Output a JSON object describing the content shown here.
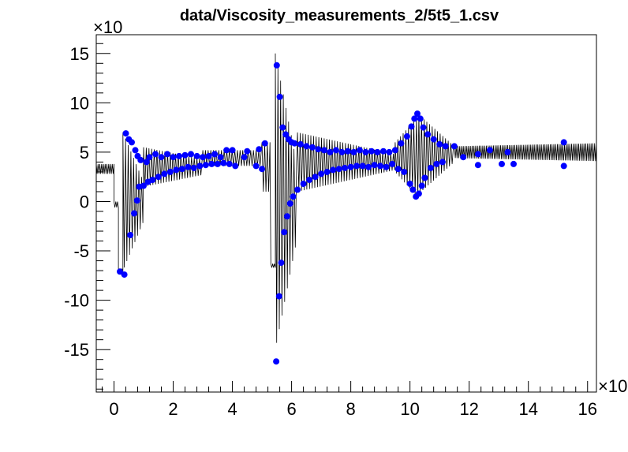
{
  "chart_data": {
    "type": "scatter",
    "title": "data/Viscosity_measurements_2/5t5_1.csv",
    "x_exponent_label": "×10",
    "y_exponent_label": "×10",
    "xlim": [
      -0.6,
      16.3
    ],
    "ylim": [
      -19.3,
      16.9
    ],
    "x_ticks": [
      0,
      2,
      4,
      6,
      8,
      10,
      12,
      14,
      16
    ],
    "x_tick_labels": [
      "0",
      "2",
      "4",
      "6",
      "8",
      "10",
      "12",
      "14",
      "16"
    ],
    "y_ticks": [
      15,
      10,
      5,
      0,
      -5,
      -10,
      -15
    ],
    "y_tick_labels": [
      "15",
      "10",
      "5",
      "0",
      "-5",
      "-10",
      "-15"
    ],
    "grid": false,
    "series": [
      {
        "kind": "signal",
        "color": "#000000",
        "segments": [
          {
            "x_start": -0.6,
            "x_end": 0.0,
            "center": 3.3,
            "amp_start": 0.5,
            "amp_end": 0.5,
            "period": 0.06
          },
          {
            "x_start": 0.0,
            "x_end": 0.15,
            "center": -0.3,
            "amp_start": 0.3,
            "amp_end": 0.3,
            "period": 0.06
          },
          {
            "x_start": 0.15,
            "x_end": 0.3,
            "center": -7.0,
            "amp_start": 0.2,
            "amp_end": 0.2,
            "period": 0.06
          },
          {
            "x_start": 0.3,
            "x_end": 1.0,
            "center": 0.0,
            "amp_start": 7.0,
            "amp_end": 2.0,
            "period": 0.09
          },
          {
            "x_start": 1.0,
            "x_end": 3.0,
            "center": 3.5,
            "amp_start": 2.0,
            "amp_end": 0.8,
            "period": 0.09
          },
          {
            "x_start": 3.0,
            "x_end": 5.0,
            "center": 4.4,
            "amp_start": 0.8,
            "amp_end": 0.8,
            "period": 0.09
          },
          {
            "x_start": 5.0,
            "x_end": 5.3,
            "center": 3.5,
            "amp_start": 2.5,
            "amp_end": 2.5,
            "period": 0.09
          },
          {
            "x_start": 5.3,
            "x_end": 5.45,
            "center": -6.5,
            "amp_start": 0.2,
            "amp_end": 0.2,
            "period": 0.06
          },
          {
            "x_start": 5.45,
            "x_end": 6.2,
            "center": 0.0,
            "amp_start": 15.0,
            "amp_end": 3.5,
            "period": 0.09
          },
          {
            "x_start": 6.2,
            "x_end": 9.5,
            "center": 4.0,
            "amp_start": 3.0,
            "amp_end": 0.8,
            "period": 0.09
          },
          {
            "x_start": 9.5,
            "x_end": 10.3,
            "center": 4.5,
            "amp_start": 1.5,
            "amp_end": 4.2,
            "period": 0.09
          },
          {
            "x_start": 10.3,
            "x_end": 11.5,
            "center": 4.8,
            "amp_start": 4.0,
            "amp_end": 0.8,
            "period": 0.09
          },
          {
            "x_start": 11.5,
            "x_end": 16.3,
            "center": 5.0,
            "amp_start": 0.6,
            "amp_end": 0.9,
            "period": 0.06
          }
        ]
      },
      {
        "kind": "markers",
        "color": "#0000ff",
        "points": [
          [
            0.2,
            -7.1
          ],
          [
            0.35,
            -7.4
          ],
          [
            0.4,
            6.9
          ],
          [
            0.5,
            6.3
          ],
          [
            0.55,
            -3.4
          ],
          [
            0.6,
            6.0
          ],
          [
            0.68,
            -1.2
          ],
          [
            0.72,
            5.2
          ],
          [
            0.78,
            0.1
          ],
          [
            0.8,
            4.6
          ],
          [
            0.85,
            1.5
          ],
          [
            0.9,
            4.2
          ],
          [
            1.0,
            1.6
          ],
          [
            1.1,
            4.0
          ],
          [
            1.15,
            2.0
          ],
          [
            1.2,
            4.5
          ],
          [
            1.3,
            2.2
          ],
          [
            1.4,
            4.8
          ],
          [
            1.5,
            2.5
          ],
          [
            1.6,
            4.5
          ],
          [
            1.7,
            2.8
          ],
          [
            1.8,
            4.8
          ],
          [
            1.9,
            3.0
          ],
          [
            2.0,
            4.5
          ],
          [
            2.1,
            3.2
          ],
          [
            2.2,
            4.6
          ],
          [
            2.3,
            3.3
          ],
          [
            2.4,
            4.7
          ],
          [
            2.5,
            3.5
          ],
          [
            2.6,
            4.8
          ],
          [
            2.7,
            3.4
          ],
          [
            2.8,
            4.6
          ],
          [
            2.9,
            3.6
          ],
          [
            3.0,
            4.5
          ],
          [
            3.1,
            3.7
          ],
          [
            3.2,
            4.6
          ],
          [
            3.3,
            3.8
          ],
          [
            3.4,
            4.8
          ],
          [
            3.5,
            3.8
          ],
          [
            3.6,
            4.5
          ],
          [
            3.7,
            3.9
          ],
          [
            3.8,
            5.2
          ],
          [
            3.9,
            3.8
          ],
          [
            4.0,
            5.2
          ],
          [
            4.1,
            3.6
          ],
          [
            4.4,
            4.5
          ],
          [
            4.5,
            5.1
          ],
          [
            4.8,
            3.6
          ],
          [
            4.9,
            5.3
          ],
          [
            5.0,
            3.3
          ],
          [
            5.1,
            5.9
          ],
          [
            5.5,
            13.8
          ],
          [
            5.48,
            -16.2
          ],
          [
            5.6,
            10.6
          ],
          [
            5.58,
            -9.6
          ],
          [
            5.65,
            -6.2
          ],
          [
            5.7,
            7.5
          ],
          [
            5.75,
            -3.1
          ],
          [
            5.8,
            6.8
          ],
          [
            5.85,
            -1.5
          ],
          [
            5.9,
            6.3
          ],
          [
            5.95,
            -0.2
          ],
          [
            6.0,
            6.0
          ],
          [
            6.05,
            0.5
          ],
          [
            6.1,
            5.9
          ],
          [
            6.2,
            1.2
          ],
          [
            6.3,
            5.8
          ],
          [
            6.4,
            1.8
          ],
          [
            6.5,
            5.6
          ],
          [
            6.6,
            2.2
          ],
          [
            6.7,
            5.5
          ],
          [
            6.8,
            2.5
          ],
          [
            6.9,
            5.3
          ],
          [
            7.0,
            2.8
          ],
          [
            7.1,
            5.2
          ],
          [
            7.2,
            3.0
          ],
          [
            7.3,
            5.0
          ],
          [
            7.4,
            3.2
          ],
          [
            7.5,
            5.2
          ],
          [
            7.6,
            3.3
          ],
          [
            7.7,
            5.0
          ],
          [
            7.8,
            3.4
          ],
          [
            7.9,
            5.1
          ],
          [
            8.0,
            3.5
          ],
          [
            8.1,
            5.0
          ],
          [
            8.2,
            3.6
          ],
          [
            8.3,
            5.2
          ],
          [
            8.4,
            3.6
          ],
          [
            8.5,
            5.0
          ],
          [
            8.6,
            3.5
          ],
          [
            8.7,
            5.1
          ],
          [
            8.8,
            3.7
          ],
          [
            8.9,
            5.0
          ],
          [
            9.0,
            3.6
          ],
          [
            9.1,
            5.1
          ],
          [
            9.2,
            3.5
          ],
          [
            9.3,
            5.0
          ],
          [
            9.4,
            3.8
          ],
          [
            9.5,
            5.2
          ],
          [
            9.6,
            3.3
          ],
          [
            9.7,
            5.9
          ],
          [
            9.8,
            3.0
          ],
          [
            9.9,
            6.6
          ],
          [
            10.0,
            1.8
          ],
          [
            10.05,
            7.6
          ],
          [
            10.1,
            1.2
          ],
          [
            10.15,
            8.4
          ],
          [
            10.2,
            0.5
          ],
          [
            10.25,
            8.9
          ],
          [
            10.3,
            0.8
          ],
          [
            10.35,
            8.4
          ],
          [
            10.4,
            1.6
          ],
          [
            10.45,
            7.5
          ],
          [
            10.5,
            2.4
          ],
          [
            10.6,
            6.8
          ],
          [
            10.7,
            3.4
          ],
          [
            10.8,
            6.3
          ],
          [
            10.9,
            3.8
          ],
          [
            11.0,
            5.8
          ],
          [
            11.1,
            4.0
          ],
          [
            11.2,
            5.6
          ],
          [
            11.5,
            5.6
          ],
          [
            11.8,
            4.5
          ],
          [
            12.3,
            4.8
          ],
          [
            12.3,
            3.7
          ],
          [
            12.7,
            5.2
          ],
          [
            13.1,
            3.8
          ],
          [
            13.3,
            5.0
          ],
          [
            13.5,
            3.8
          ],
          [
            15.2,
            6.0
          ],
          [
            15.2,
            3.6
          ]
        ]
      }
    ]
  }
}
